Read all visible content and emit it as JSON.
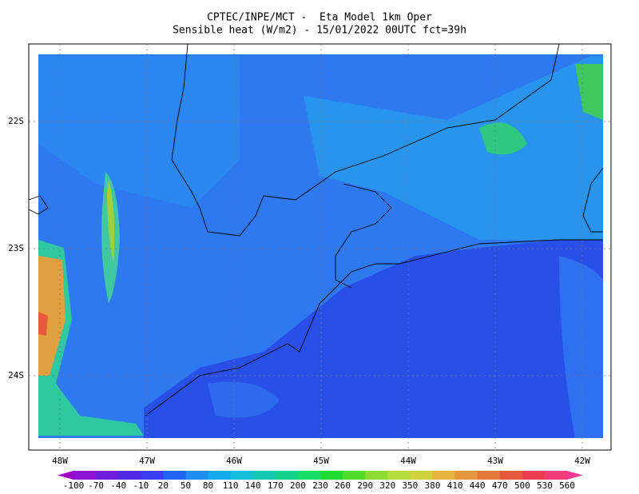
{
  "header": {
    "title": "CPTEC/INPE/MCT -  Eta Model 1km Oper",
    "subtitle": "Sensible heat (W/m2) - 15/01/2022 00UTC fct=39h"
  },
  "map": {
    "lon_labels": [
      "48W",
      "47W",
      "46W",
      "45W",
      "44W",
      "43W",
      "42W"
    ],
    "lat_labels": [
      "22S",
      "23S",
      "24S"
    ]
  },
  "colorbar": {
    "labels": [
      -100,
      -70,
      -40,
      -10,
      20,
      50,
      80,
      110,
      140,
      170,
      200,
      230,
      260,
      290,
      320,
      350,
      380,
      410,
      440,
      470,
      500,
      530,
      560
    ],
    "colors": [
      "#a000c8",
      "#8c14d2",
      "#6e1edc",
      "#5028e6",
      "#3c3cf0",
      "#1e64f0",
      "#1e8cf0",
      "#14aaf0",
      "#14bedc",
      "#14c8b4",
      "#14d28c",
      "#14dc64",
      "#1edc32",
      "#50dc28",
      "#8cdc32",
      "#b4dc3c",
      "#d2d23c",
      "#e6b43c",
      "#e6963c",
      "#e6783c",
      "#e65a3c",
      "#eb3c50",
      "#f03c78",
      "#f03c96"
    ]
  }
}
